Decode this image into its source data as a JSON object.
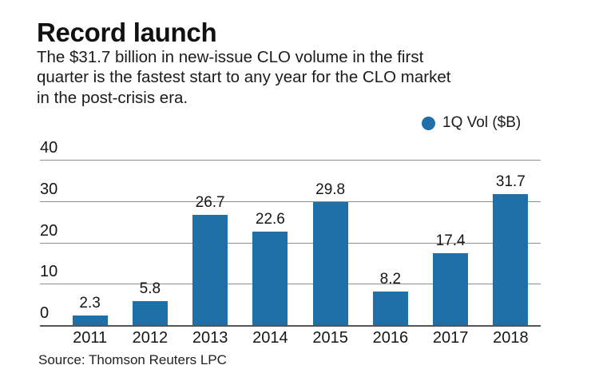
{
  "header": {
    "title": "Record launch",
    "subtitle_lines": [
      "The $31.7 billion in new-issue CLO volume in the first",
      "quarter is the fastest start to any year for the CLO market",
      "in the post-crisis era."
    ]
  },
  "legend": {
    "label": "1Q Vol ($B)",
    "marker_color": "#1f6fa8"
  },
  "chart_data": {
    "type": "bar",
    "title": "Record launch",
    "categories": [
      "2011",
      "2012",
      "2013",
      "2014",
      "2015",
      "2016",
      "2017",
      "2018"
    ],
    "series": [
      {
        "name": "1Q Vol ($B)",
        "values": [
          2.3,
          5.8,
          26.7,
          22.6,
          29.8,
          8.2,
          17.4,
          31.7
        ]
      }
    ],
    "xlabel": "",
    "ylabel": "",
    "ylim": [
      0,
      40
    ],
    "yticks": [
      0,
      10,
      20,
      30,
      40
    ],
    "grid": true,
    "legend_position": "top-right",
    "value_labels": true,
    "bar_color": "#1f6fa8"
  },
  "footer": {
    "source": "Source: Thomson Reuters LPC"
  },
  "colors": {
    "bar": "#1f6fa8",
    "gridline": "#8e8e93",
    "axis": "#54555a",
    "text": "#161616",
    "background": "#ffffff"
  }
}
